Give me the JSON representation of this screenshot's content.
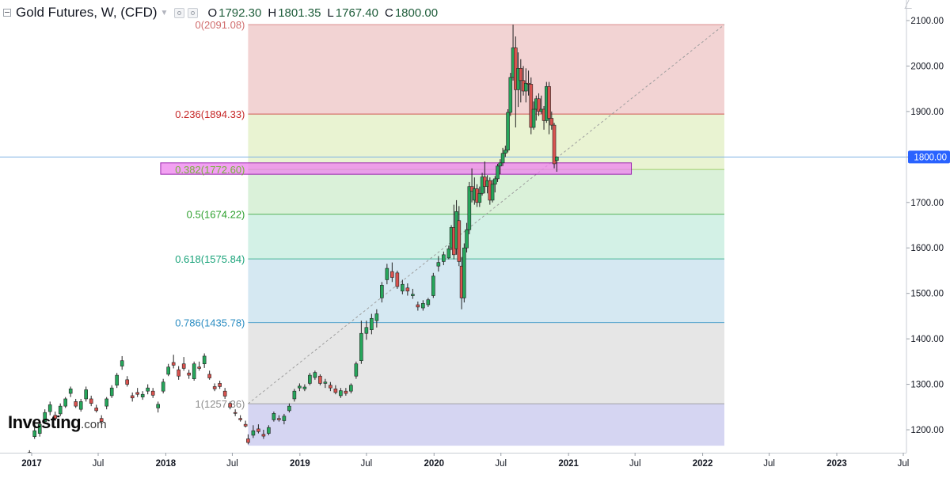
{
  "header": {
    "title": "Gold Futures, W, (CFD)",
    "ohlc": [
      {
        "key": "O",
        "value": "1792.30"
      },
      {
        "key": "H",
        "value": "1801.35"
      },
      {
        "key": "L",
        "value": "1767.40"
      },
      {
        "key": "C",
        "value": "1800.00"
      }
    ]
  },
  "logo": {
    "brand": "Investing",
    "suffix": ".com"
  },
  "colors": {
    "up": "#26a65b",
    "down": "#d9534f",
    "fib_0": "#f2d3d3",
    "fib_0236": "#e9f3d2",
    "fib_0382": "#daf1d9",
    "fib_05": "#d3f1e6",
    "fib_0618": "#d5e8f2",
    "fib_0786": "#e6e6e6",
    "fib_1": "#d5d5f2",
    "highlight": "#ee82ee"
  },
  "chart_data": {
    "type": "candlestick",
    "title": "Gold Futures, W, (CFD)",
    "ylim": [
      1160,
      2140
    ],
    "y_ticks": [
      "1200.00",
      "1300.00",
      "1400.00",
      "1500.00",
      "1600.00",
      "1700.00",
      "1800.00",
      "1900.00",
      "2000.00",
      "2100.00"
    ],
    "x_ticks": [
      {
        "label": "2017",
        "bold": true
      },
      {
        "label": "Jul",
        "bold": false
      },
      {
        "label": "2018",
        "bold": true
      },
      {
        "label": "Jul",
        "bold": false
      },
      {
        "label": "2019",
        "bold": true
      },
      {
        "label": "Jul",
        "bold": false
      },
      {
        "label": "2020",
        "bold": true
      },
      {
        "label": "Jul",
        "bold": false
      },
      {
        "label": "2021",
        "bold": true
      },
      {
        "label": "Jul",
        "bold": false
      },
      {
        "label": "2022",
        "bold": true
      },
      {
        "label": "Jul",
        "bold": false
      },
      {
        "label": "2023",
        "bold": true
      },
      {
        "label": "Jul",
        "bold": false
      }
    ],
    "x_tick_dates": [
      "2017-01-01",
      "2017-07-01",
      "2018-01-01",
      "2018-07-01",
      "2019-01-01",
      "2019-07-01",
      "2020-01-01",
      "2020-07-01",
      "2021-01-01",
      "2021-07-01",
      "2022-01-01",
      "2022-07-01",
      "2023-01-01",
      "2023-07-01"
    ],
    "current_price": {
      "value": 1800.0,
      "label": "1800.00"
    },
    "fibonacci_retracement": {
      "start_date": "2018-08-13",
      "end_date": "2022-03-01",
      "levels": [
        {
          "ratio": 0,
          "price": 2091.08,
          "label": "0(2091.08)",
          "color": "#d06d6d"
        },
        {
          "ratio": 0.236,
          "price": 1894.33,
          "label": "0.236(1894.33)",
          "color": "#c62828"
        },
        {
          "ratio": 0.382,
          "price": 1772.6,
          "label": "0.382(1772.60)",
          "color": "#8bc34a"
        },
        {
          "ratio": 0.5,
          "price": 1674.22,
          "label": "0.5(1674.22)",
          "color": "#2ea02e"
        },
        {
          "ratio": 0.618,
          "price": 1575.84,
          "label": "0.618(1575.84)",
          "color": "#1aa37a"
        },
        {
          "ratio": 0.786,
          "price": 1435.78,
          "label": "0.786(1435.78)",
          "color": "#2a8cc2"
        },
        {
          "ratio": 1,
          "price": 1257.36,
          "label": "1(1257.36)",
          "color": "#8c8c8c"
        }
      ],
      "extension_price": 1165
    },
    "highlight_zone": {
      "start_date": "2017-12-18",
      "end_date": "2021-06-21",
      "low": 1762,
      "high": 1787
    },
    "candles": [
      {
        "d": "2016-12-26",
        "o": 1142,
        "h": 1155,
        "l": 1138,
        "c": 1150
      },
      {
        "d": "2017-01-09",
        "o": 1185,
        "h": 1205,
        "l": 1180,
        "c": 1198
      },
      {
        "d": "2017-01-23",
        "o": 1192,
        "h": 1220,
        "l": 1185,
        "c": 1212
      },
      {
        "d": "2017-02-06",
        "o": 1218,
        "h": 1245,
        "l": 1215,
        "c": 1238
      },
      {
        "d": "2017-02-20",
        "o": 1240,
        "h": 1262,
        "l": 1232,
        "c": 1255
      },
      {
        "d": "2017-03-06",
        "o": 1232,
        "h": 1240,
        "l": 1220,
        "c": 1225
      },
      {
        "d": "2017-03-20",
        "o": 1235,
        "h": 1258,
        "l": 1230,
        "c": 1252
      },
      {
        "d": "2017-04-03",
        "o": 1252,
        "h": 1272,
        "l": 1248,
        "c": 1268
      },
      {
        "d": "2017-04-17",
        "o": 1280,
        "h": 1295,
        "l": 1272,
        "c": 1290
      },
      {
        "d": "2017-05-01",
        "o": 1262,
        "h": 1268,
        "l": 1248,
        "c": 1252
      },
      {
        "d": "2017-05-15",
        "o": 1245,
        "h": 1268,
        "l": 1240,
        "c": 1262
      },
      {
        "d": "2017-05-29",
        "o": 1268,
        "h": 1295,
        "l": 1262,
        "c": 1288
      },
      {
        "d": "2017-06-12",
        "o": 1268,
        "h": 1275,
        "l": 1252,
        "c": 1258
      },
      {
        "d": "2017-06-26",
        "o": 1248,
        "h": 1255,
        "l": 1238,
        "c": 1242
      },
      {
        "d": "2017-07-10",
        "o": 1225,
        "h": 1232,
        "l": 1212,
        "c": 1218
      },
      {
        "d": "2017-07-24",
        "o": 1252,
        "h": 1272,
        "l": 1245,
        "c": 1268
      },
      {
        "d": "2017-08-07",
        "o": 1275,
        "h": 1298,
        "l": 1270,
        "c": 1292
      },
      {
        "d": "2017-08-21",
        "o": 1298,
        "h": 1325,
        "l": 1292,
        "c": 1320
      },
      {
        "d": "2017-09-04",
        "o": 1340,
        "h": 1362,
        "l": 1332,
        "c": 1352
      },
      {
        "d": "2017-09-18",
        "o": 1310,
        "h": 1318,
        "l": 1295,
        "c": 1300
      },
      {
        "d": "2017-10-02",
        "o": 1275,
        "h": 1282,
        "l": 1262,
        "c": 1270
      },
      {
        "d": "2017-10-16",
        "o": 1282,
        "h": 1292,
        "l": 1272,
        "c": 1278
      },
      {
        "d": "2017-10-30",
        "o": 1272,
        "h": 1285,
        "l": 1266,
        "c": 1278
      },
      {
        "d": "2017-11-13",
        "o": 1285,
        "h": 1300,
        "l": 1278,
        "c": 1292
      },
      {
        "d": "2017-11-27",
        "o": 1285,
        "h": 1292,
        "l": 1270,
        "c": 1276
      },
      {
        "d": "2017-12-11",
        "o": 1248,
        "h": 1262,
        "l": 1238,
        "c": 1256
      },
      {
        "d": "2017-12-25",
        "o": 1285,
        "h": 1312,
        "l": 1280,
        "c": 1305
      },
      {
        "d": "2018-01-08",
        "o": 1322,
        "h": 1345,
        "l": 1318,
        "c": 1338
      },
      {
        "d": "2018-01-22",
        "o": 1348,
        "h": 1365,
        "l": 1335,
        "c": 1342
      },
      {
        "d": "2018-02-05",
        "o": 1332,
        "h": 1340,
        "l": 1310,
        "c": 1318
      },
      {
        "d": "2018-02-19",
        "o": 1345,
        "h": 1360,
        "l": 1330,
        "c": 1335
      },
      {
        "d": "2018-03-05",
        "o": 1325,
        "h": 1332,
        "l": 1312,
        "c": 1320
      },
      {
        "d": "2018-03-19",
        "o": 1312,
        "h": 1350,
        "l": 1308,
        "c": 1345
      },
      {
        "d": "2018-04-02",
        "o": 1338,
        "h": 1350,
        "l": 1330,
        "c": 1335
      },
      {
        "d": "2018-04-16",
        "o": 1345,
        "h": 1368,
        "l": 1336,
        "c": 1362
      },
      {
        "d": "2018-04-30",
        "o": 1322,
        "h": 1330,
        "l": 1310,
        "c": 1314
      },
      {
        "d": "2018-05-14",
        "o": 1295,
        "h": 1302,
        "l": 1285,
        "c": 1290
      },
      {
        "d": "2018-05-28",
        "o": 1302,
        "h": 1308,
        "l": 1290,
        "c": 1295
      },
      {
        "d": "2018-06-11",
        "o": 1285,
        "h": 1292,
        "l": 1268,
        "c": 1274
      },
      {
        "d": "2018-06-25",
        "o": 1258,
        "h": 1262,
        "l": 1245,
        "c": 1250
      },
      {
        "d": "2018-07-09",
        "o": 1238,
        "h": 1245,
        "l": 1230,
        "c": 1236
      },
      {
        "d": "2018-07-23",
        "o": 1225,
        "h": 1232,
        "l": 1218,
        "c": 1222
      },
      {
        "d": "2018-08-06",
        "o": 1212,
        "h": 1220,
        "l": 1205,
        "c": 1208
      },
      {
        "d": "2018-08-13",
        "o": 1180,
        "h": 1190,
        "l": 1168,
        "c": 1172
      },
      {
        "d": "2018-08-27",
        "o": 1188,
        "h": 1210,
        "l": 1182,
        "c": 1198
      },
      {
        "d": "2018-09-10",
        "o": 1202,
        "h": 1212,
        "l": 1192,
        "c": 1196
      },
      {
        "d": "2018-09-24",
        "o": 1190,
        "h": 1200,
        "l": 1180,
        "c": 1186
      },
      {
        "d": "2018-10-08",
        "o": 1192,
        "h": 1210,
        "l": 1188,
        "c": 1205
      },
      {
        "d": "2018-10-22",
        "o": 1222,
        "h": 1240,
        "l": 1218,
        "c": 1236
      },
      {
        "d": "2018-11-05",
        "o": 1225,
        "h": 1232,
        "l": 1218,
        "c": 1222
      },
      {
        "d": "2018-11-19",
        "o": 1220,
        "h": 1235,
        "l": 1212,
        "c": 1230
      },
      {
        "d": "2018-12-03",
        "o": 1242,
        "h": 1258,
        "l": 1238,
        "c": 1252
      },
      {
        "d": "2018-12-17",
        "o": 1268,
        "h": 1290,
        "l": 1262,
        "c": 1285
      },
      {
        "d": "2018-12-31",
        "o": 1292,
        "h": 1302,
        "l": 1285,
        "c": 1296
      },
      {
        "d": "2019-01-14",
        "o": 1290,
        "h": 1300,
        "l": 1285,
        "c": 1294
      },
      {
        "d": "2019-01-28",
        "o": 1302,
        "h": 1325,
        "l": 1298,
        "c": 1320
      },
      {
        "d": "2019-02-11",
        "o": 1315,
        "h": 1330,
        "l": 1310,
        "c": 1326
      },
      {
        "d": "2019-02-25",
        "o": 1318,
        "h": 1322,
        "l": 1298,
        "c": 1302
      },
      {
        "d": "2019-03-11",
        "o": 1302,
        "h": 1312,
        "l": 1292,
        "c": 1305
      },
      {
        "d": "2019-03-25",
        "o": 1298,
        "h": 1305,
        "l": 1285,
        "c": 1292
      },
      {
        "d": "2019-04-08",
        "o": 1290,
        "h": 1298,
        "l": 1278,
        "c": 1282
      },
      {
        "d": "2019-04-22",
        "o": 1275,
        "h": 1292,
        "l": 1270,
        "c": 1286
      },
      {
        "d": "2019-05-06",
        "o": 1285,
        "h": 1292,
        "l": 1275,
        "c": 1280
      },
      {
        "d": "2019-05-20",
        "o": 1285,
        "h": 1302,
        "l": 1280,
        "c": 1298
      },
      {
        "d": "2019-06-03",
        "o": 1318,
        "h": 1350,
        "l": 1312,
        "c": 1345
      },
      {
        "d": "2019-06-17",
        "o": 1352,
        "h": 1440,
        "l": 1345,
        "c": 1412
      },
      {
        "d": "2019-07-01",
        "o": 1412,
        "h": 1440,
        "l": 1398,
        "c": 1425
      },
      {
        "d": "2019-07-15",
        "o": 1420,
        "h": 1455,
        "l": 1410,
        "c": 1445
      },
      {
        "d": "2019-07-29",
        "o": 1440,
        "h": 1465,
        "l": 1425,
        "c": 1455
      },
      {
        "d": "2019-08-12",
        "o": 1490,
        "h": 1525,
        "l": 1480,
        "c": 1518
      },
      {
        "d": "2019-08-26",
        "o": 1530,
        "h": 1565,
        "l": 1520,
        "c": 1555
      },
      {
        "d": "2019-09-09",
        "o": 1548,
        "h": 1568,
        "l": 1525,
        "c": 1535
      },
      {
        "d": "2019-09-23",
        "o": 1545,
        "h": 1550,
        "l": 1510,
        "c": 1515
      },
      {
        "d": "2019-10-07",
        "o": 1505,
        "h": 1530,
        "l": 1498,
        "c": 1520
      },
      {
        "d": "2019-10-21",
        "o": 1512,
        "h": 1522,
        "l": 1495,
        "c": 1505
      },
      {
        "d": "2019-11-04",
        "o": 1495,
        "h": 1510,
        "l": 1488,
        "c": 1498
      },
      {
        "d": "2019-11-18",
        "o": 1475,
        "h": 1482,
        "l": 1462,
        "c": 1470
      },
      {
        "d": "2019-12-02",
        "o": 1468,
        "h": 1485,
        "l": 1462,
        "c": 1478
      },
      {
        "d": "2019-12-16",
        "o": 1475,
        "h": 1490,
        "l": 1470,
        "c": 1486
      },
      {
        "d": "2019-12-30",
        "o": 1495,
        "h": 1545,
        "l": 1490,
        "c": 1538
      },
      {
        "d": "2020-01-13",
        "o": 1560,
        "h": 1582,
        "l": 1548,
        "c": 1568
      },
      {
        "d": "2020-01-27",
        "o": 1570,
        "h": 1592,
        "l": 1562,
        "c": 1585
      },
      {
        "d": "2020-02-10",
        "o": 1578,
        "h": 1605,
        "l": 1575,
        "c": 1598
      },
      {
        "d": "2020-02-17",
        "o": 1600,
        "h": 1650,
        "l": 1595,
        "c": 1645
      },
      {
        "d": "2020-02-24",
        "o": 1645,
        "h": 1695,
        "l": 1575,
        "c": 1585
      },
      {
        "d": "2020-03-02",
        "o": 1598,
        "h": 1705,
        "l": 1585,
        "c": 1680
      },
      {
        "d": "2020-03-09",
        "o": 1660,
        "h": 1692,
        "l": 1560,
        "c": 1570
      },
      {
        "d": "2020-03-16",
        "o": 1560,
        "h": 1580,
        "l": 1465,
        "c": 1490
      },
      {
        "d": "2020-03-23",
        "o": 1490,
        "h": 1610,
        "l": 1480,
        "c": 1600
      },
      {
        "d": "2020-03-30",
        "o": 1600,
        "h": 1655,
        "l": 1590,
        "c": 1640
      },
      {
        "d": "2020-04-06",
        "o": 1640,
        "h": 1745,
        "l": 1630,
        "c": 1735
      },
      {
        "d": "2020-04-13",
        "o": 1735,
        "h": 1775,
        "l": 1700,
        "c": 1725
      },
      {
        "d": "2020-04-20",
        "o": 1705,
        "h": 1755,
        "l": 1695,
        "c": 1730
      },
      {
        "d": "2020-04-27",
        "o": 1730,
        "h": 1740,
        "l": 1690,
        "c": 1700
      },
      {
        "d": "2020-05-04",
        "o": 1700,
        "h": 1735,
        "l": 1690,
        "c": 1720
      },
      {
        "d": "2020-05-11",
        "o": 1720,
        "h": 1765,
        "l": 1715,
        "c": 1756
      },
      {
        "d": "2020-05-18",
        "o": 1756,
        "h": 1790,
        "l": 1720,
        "c": 1735
      },
      {
        "d": "2020-05-25",
        "o": 1735,
        "h": 1760,
        "l": 1720,
        "c": 1748
      },
      {
        "d": "2020-06-01",
        "o": 1748,
        "h": 1755,
        "l": 1695,
        "c": 1705
      },
      {
        "d": "2020-06-08",
        "o": 1705,
        "h": 1750,
        "l": 1700,
        "c": 1740
      },
      {
        "d": "2020-06-15",
        "o": 1740,
        "h": 1758,
        "l": 1722,
        "c": 1752
      },
      {
        "d": "2020-06-22",
        "o": 1752,
        "h": 1785,
        "l": 1745,
        "c": 1780
      },
      {
        "d": "2020-06-29",
        "o": 1780,
        "h": 1795,
        "l": 1762,
        "c": 1787
      },
      {
        "d": "2020-07-06",
        "o": 1787,
        "h": 1820,
        "l": 1780,
        "c": 1808
      },
      {
        "d": "2020-07-13",
        "o": 1808,
        "h": 1825,
        "l": 1800,
        "c": 1815
      },
      {
        "d": "2020-07-20",
        "o": 1815,
        "h": 1905,
        "l": 1810,
        "c": 1898
      },
      {
        "d": "2020-07-27",
        "o": 1898,
        "h": 1985,
        "l": 1890,
        "c": 1975
      },
      {
        "d": "2020-08-03",
        "o": 1975,
        "h": 2091,
        "l": 1968,
        "c": 2040
      },
      {
        "d": "2020-08-10",
        "o": 2040,
        "h": 2065,
        "l": 1865,
        "c": 1948
      },
      {
        "d": "2020-08-17",
        "o": 1948,
        "h": 2030,
        "l": 1910,
        "c": 1995
      },
      {
        "d": "2020-08-24",
        "o": 1995,
        "h": 2015,
        "l": 1920,
        "c": 1968
      },
      {
        "d": "2020-08-31",
        "o": 1968,
        "h": 2000,
        "l": 1935,
        "c": 1945
      },
      {
        "d": "2020-09-07",
        "o": 1945,
        "h": 1995,
        "l": 1920,
        "c": 1962
      },
      {
        "d": "2020-09-14",
        "o": 1962,
        "h": 1990,
        "l": 1935,
        "c": 1960
      },
      {
        "d": "2020-09-21",
        "o": 1960,
        "h": 1975,
        "l": 1850,
        "c": 1865
      },
      {
        "d": "2020-09-28",
        "o": 1865,
        "h": 1922,
        "l": 1860,
        "c": 1905
      },
      {
        "d": "2020-10-05",
        "o": 1905,
        "h": 1935,
        "l": 1880,
        "c": 1928
      },
      {
        "d": "2020-10-12",
        "o": 1928,
        "h": 1940,
        "l": 1890,
        "c": 1900
      },
      {
        "d": "2020-10-19",
        "o": 1900,
        "h": 1935,
        "l": 1895,
        "c": 1905
      },
      {
        "d": "2020-10-26",
        "o": 1905,
        "h": 1912,
        "l": 1860,
        "c": 1880
      },
      {
        "d": "2020-11-02",
        "o": 1880,
        "h": 1965,
        "l": 1875,
        "c": 1955
      },
      {
        "d": "2020-11-09",
        "o": 1955,
        "h": 1965,
        "l": 1850,
        "c": 1885
      },
      {
        "d": "2020-11-16",
        "o": 1885,
        "h": 1900,
        "l": 1860,
        "c": 1870
      },
      {
        "d": "2020-11-23",
        "o": 1870,
        "h": 1875,
        "l": 1775,
        "c": 1785
      },
      {
        "d": "2020-11-30",
        "o": 1792.3,
        "h": 1801.35,
        "l": 1767.4,
        "c": 1800
      }
    ]
  }
}
